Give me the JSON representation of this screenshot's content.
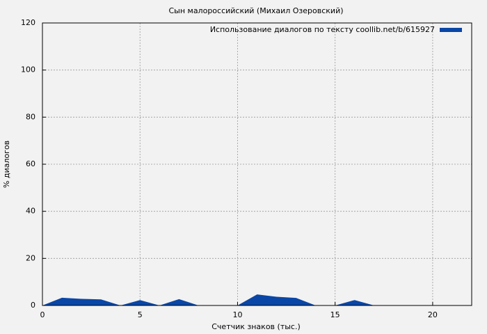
{
  "chart_data": {
    "type": "area",
    "title": "Сын малороссийский (Михаил Озеровский)",
    "xlabel": "Счетчик знаков (тыс.)",
    "ylabel": "% диалогов",
    "x": [
      0,
      1,
      2,
      3,
      4,
      5,
      6,
      7,
      8,
      9,
      10,
      11,
      12,
      13,
      14,
      15,
      16,
      17,
      18,
      19,
      20,
      21,
      22
    ],
    "series": [
      {
        "name": "Использование диалогов по тексту coollib.net/b/615927",
        "color": "#0a46a5",
        "values": [
          0,
          3.3,
          2.8,
          2.6,
          0,
          2.3,
          0,
          2.7,
          0,
          0,
          0,
          4.7,
          3.7,
          3.2,
          0,
          0,
          2.3,
          0,
          0,
          0,
          0,
          0,
          0
        ]
      }
    ],
    "xlim": [
      0,
      22
    ],
    "ylim": [
      0,
      120
    ],
    "xticks": [
      0,
      5,
      10,
      15,
      20
    ],
    "yticks": [
      0,
      20,
      40,
      60,
      80,
      100,
      120
    ],
    "grid": true,
    "legend": "top-right"
  }
}
